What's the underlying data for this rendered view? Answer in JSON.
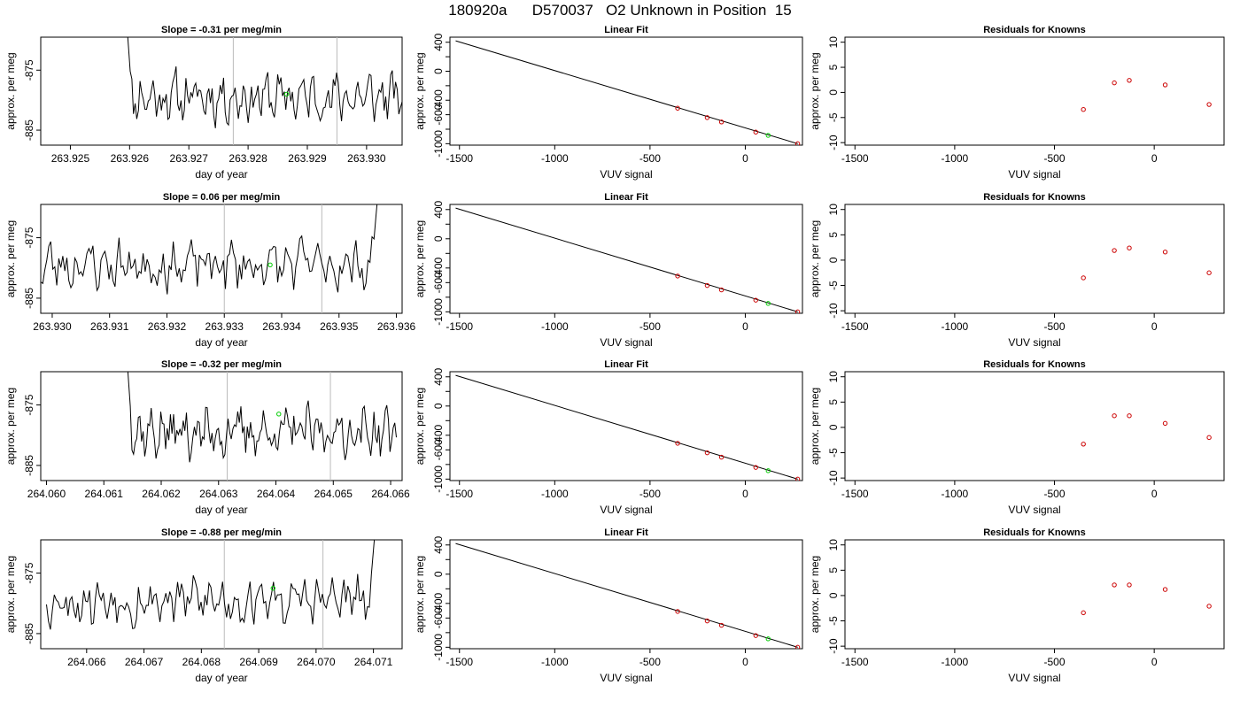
{
  "page_title": "180920a      D570037   O2 Unknown in Position  15",
  "colors": {
    "trace": "#000000",
    "marker_unknown": "#00cc00",
    "marker_known": "#cc0000",
    "vline": "#bbbbbb",
    "frame": "#000000"
  },
  "chart_data": [
    {
      "type": "line",
      "row": 1,
      "title": "Slope =  -0.31  per meg/min",
      "xlabel": "day of year",
      "ylabel": "approx. per meg",
      "xlim": [
        263.9245,
        263.9306
      ],
      "ylim": [
        -887.5,
        -869.5
      ],
      "xticks": [
        "263.925",
        "263.926",
        "263.927",
        "263.928",
        "263.929",
        "263.930"
      ],
      "xtick_values": [
        263.925,
        263.926,
        263.927,
        263.928,
        263.929,
        263.93
      ],
      "yticks": [
        "-885",
        "-875"
      ],
      "ytick_values": [
        -885,
        -875
      ],
      "vlines": [
        263.92775,
        263.9295
      ],
      "trace_x_range": [
        263.9259,
        263.9306
      ],
      "trace_seed": 11,
      "trace_start_high": true,
      "trace_end_high": false,
      "marker": {
        "x": 263.92865,
        "y": -879
      }
    },
    {
      "type": "scatter",
      "row": 1,
      "title": "Linear Fit",
      "xlabel": "VUV signal",
      "ylabel": "approx. per meg",
      "xlim": [
        -1550,
        300
      ],
      "ylim": [
        -1020,
        470
      ],
      "xticks": [
        "-1500",
        "-1000",
        "-500",
        "0"
      ],
      "xtick_values": [
        -1500,
        -1000,
        -500,
        0
      ],
      "yticks": [
        "-1000",
        "-800",
        "-600",
        "-400",
        "-200",
        "0",
        "200",
        "400"
      ],
      "ytick_values": [
        -1000,
        -800,
        -600,
        -400,
        -200,
        0,
        200,
        400
      ],
      "ytick_labels_shown": [
        "-1000",
        "-600",
        "-400",
        "0",
        "400"
      ],
      "fit_line": {
        "x": [
          -1520,
          275
        ],
        "y": [
          420,
          -1000
        ]
      },
      "knowns": {
        "x": [
          -355,
          -200,
          -125,
          55,
          275
        ],
        "y": [
          -510,
          -640,
          -700,
          -840,
          -1000
        ]
      },
      "unknown": {
        "x": 120,
        "y": -885
      }
    },
    {
      "type": "scatter",
      "row": 1,
      "title": "Residuals for Knowns",
      "xlabel": "VUV signal",
      "ylabel": "approx. per meg",
      "xlim": [
        -1550,
        350
      ],
      "ylim": [
        -10.5,
        11
      ],
      "xticks": [
        "-1500",
        "-1000",
        "-500",
        "0"
      ],
      "xtick_values": [
        -1500,
        -1000,
        -500,
        0
      ],
      "yticks": [
        "-10",
        "-5",
        "0",
        "5",
        "10"
      ],
      "ytick_values": [
        -10,
        -5,
        0,
        5,
        10
      ],
      "points": {
        "x": [
          -355,
          -200,
          -125,
          55,
          275
        ],
        "y": [
          -3.4,
          1.9,
          2.4,
          1.5,
          -2.4
        ]
      }
    },
    {
      "type": "line",
      "row": 2,
      "title": "Slope =  0.06  per meg/min",
      "xlabel": "day of year",
      "ylabel": "approx. per meg",
      "xlim": [
        263.9298,
        263.9361
      ],
      "ylim": [
        -887.5,
        -869.5
      ],
      "xticks": [
        "263.930",
        "263.931",
        "263.932",
        "263.933",
        "263.934",
        "263.935",
        "263.936"
      ],
      "xtick_values": [
        263.93,
        263.931,
        263.932,
        263.933,
        263.934,
        263.935,
        263.936
      ],
      "yticks": [
        "-885",
        "-875"
      ],
      "ytick_values": [
        -885,
        -875
      ],
      "vlines": [
        263.933,
        263.9347
      ],
      "trace_x_range": [
        263.9298,
        263.93575
      ],
      "trace_seed": 23,
      "trace_start_high": false,
      "trace_end_high": true,
      "marker": {
        "x": 263.9338,
        "y": -879.5
      }
    },
    {
      "type": "scatter",
      "row": 2,
      "title": "Linear Fit",
      "xlabel": "VUV signal",
      "ylabel": "approx. per meg",
      "xlim": [
        -1550,
        300
      ],
      "ylim": [
        -1020,
        470
      ],
      "xticks": [
        "-1500",
        "-1000",
        "-500",
        "0"
      ],
      "xtick_values": [
        -1500,
        -1000,
        -500,
        0
      ],
      "yticks": [
        "-1000",
        "-800",
        "-600",
        "-400",
        "-200",
        "0",
        "200",
        "400"
      ],
      "ytick_values": [
        -1000,
        -800,
        -600,
        -400,
        -200,
        0,
        200,
        400
      ],
      "ytick_labels_shown": [
        "-1000",
        "-600",
        "-400",
        "0",
        "400"
      ],
      "fit_line": {
        "x": [
          -1520,
          275
        ],
        "y": [
          420,
          -1000
        ]
      },
      "knowns": {
        "x": [
          -355,
          -200,
          -125,
          55,
          275
        ],
        "y": [
          -510,
          -640,
          -700,
          -840,
          -1000
        ]
      },
      "unknown": {
        "x": 120,
        "y": -885
      }
    },
    {
      "type": "scatter",
      "row": 2,
      "title": "Residuals for Knowns",
      "xlabel": "VUV signal",
      "ylabel": "approx. per meg",
      "xlim": [
        -1550,
        350
      ],
      "ylim": [
        -10.5,
        11
      ],
      "xticks": [
        "-1500",
        "-1000",
        "-500",
        "0"
      ],
      "xtick_values": [
        -1500,
        -1000,
        -500,
        0
      ],
      "yticks": [
        "-10",
        "-5",
        "0",
        "5",
        "10"
      ],
      "ytick_values": [
        -10,
        -5,
        0,
        5,
        10
      ],
      "points": {
        "x": [
          -355,
          -200,
          -125,
          55,
          275
        ],
        "y": [
          -3.5,
          1.9,
          2.4,
          1.6,
          -2.5
        ]
      }
    },
    {
      "type": "line",
      "row": 3,
      "title": "Slope =  -0.32  per meg/min",
      "xlabel": "day of year",
      "ylabel": "approx. per meg",
      "xlim": [
        264.0599,
        264.0662
      ],
      "ylim": [
        -887.5,
        -869.5
      ],
      "xticks": [
        "264.060",
        "264.061",
        "264.062",
        "264.063",
        "264.064",
        "264.065",
        "264.066"
      ],
      "xtick_values": [
        264.06,
        264.061,
        264.062,
        264.063,
        264.064,
        264.065,
        264.066
      ],
      "yticks": [
        "-885",
        "-875"
      ],
      "ytick_values": [
        -885,
        -875
      ],
      "vlines": [
        264.06315,
        264.06495
      ],
      "trace_x_range": [
        264.06135,
        264.0661
      ],
      "trace_seed": 37,
      "trace_start_high": true,
      "trace_end_high": false,
      "marker": {
        "x": 264.06405,
        "y": -876.5
      }
    },
    {
      "type": "scatter",
      "row": 3,
      "title": "Linear Fit",
      "xlabel": "VUV signal",
      "ylabel": "approx. per meg",
      "xlim": [
        -1550,
        300
      ],
      "ylim": [
        -1020,
        470
      ],
      "xticks": [
        "-1500",
        "-1000",
        "-500",
        "0"
      ],
      "xtick_values": [
        -1500,
        -1000,
        -500,
        0
      ],
      "yticks": [
        "-1000",
        "-800",
        "-600",
        "-400",
        "-200",
        "0",
        "200",
        "400"
      ],
      "ytick_values": [
        -1000,
        -800,
        -600,
        -400,
        -200,
        0,
        200,
        400
      ],
      "ytick_labels_shown": [
        "-1000",
        "-600",
        "-400",
        "0",
        "400"
      ],
      "fit_line": {
        "x": [
          -1520,
          275
        ],
        "y": [
          420,
          -1000
        ]
      },
      "knowns": {
        "x": [
          -355,
          -200,
          -125,
          55,
          275
        ],
        "y": [
          -510,
          -640,
          -700,
          -840,
          -1000
        ]
      },
      "unknown": {
        "x": 120,
        "y": -885
      }
    },
    {
      "type": "scatter",
      "row": 3,
      "title": "Residuals for Knowns",
      "xlabel": "VUV signal",
      "ylabel": "approx. per meg",
      "xlim": [
        -1550,
        350
      ],
      "ylim": [
        -10.5,
        11
      ],
      "xticks": [
        "-1500",
        "-1000",
        "-500",
        "0"
      ],
      "xtick_values": [
        -1500,
        -1000,
        -500,
        0
      ],
      "yticks": [
        "-10",
        "-5",
        "0",
        "5",
        "10"
      ],
      "ytick_values": [
        -10,
        -5,
        0,
        5,
        10
      ],
      "points": {
        "x": [
          -355,
          -200,
          -125,
          55,
          275
        ],
        "y": [
          -3.3,
          2.3,
          2.3,
          0.8,
          -2.0
        ]
      }
    },
    {
      "type": "line",
      "row": 4,
      "title": "Slope =  -0.88  per meg/min",
      "xlabel": "day of year",
      "ylabel": "approx. per meg",
      "xlim": [
        264.0652,
        264.0715
      ],
      "ylim": [
        -887.5,
        -869.5
      ],
      "xticks": [
        "264.066",
        "264.067",
        "264.068",
        "264.069",
        "264.070",
        "264.071"
      ],
      "xtick_values": [
        264.066,
        264.067,
        264.068,
        264.069,
        264.07,
        264.071
      ],
      "yticks": [
        "-885",
        "-875"
      ],
      "ytick_values": [
        -885,
        -875
      ],
      "vlines": [
        264.0684,
        264.07012
      ],
      "trace_x_range": [
        264.0653,
        264.0711
      ],
      "trace_seed": 53,
      "trace_start_high": false,
      "trace_end_high": true,
      "marker": {
        "x": 264.06925,
        "y": -877.5
      }
    },
    {
      "type": "scatter",
      "row": 4,
      "title": "Linear Fit",
      "xlabel": "VUV signal",
      "ylabel": "approx. per meg",
      "xlim": [
        -1550,
        300
      ],
      "ylim": [
        -1020,
        470
      ],
      "xticks": [
        "-1500",
        "-1000",
        "-500",
        "0"
      ],
      "xtick_values": [
        -1500,
        -1000,
        -500,
        0
      ],
      "yticks": [
        "-1000",
        "-800",
        "-600",
        "-400",
        "-200",
        "0",
        "200",
        "400"
      ],
      "ytick_values": [
        -1000,
        -800,
        -600,
        -400,
        -200,
        0,
        200,
        400
      ],
      "ytick_labels_shown": [
        "-1000",
        "-600",
        "-400",
        "0",
        "400"
      ],
      "fit_line": {
        "x": [
          -1520,
          275
        ],
        "y": [
          420,
          -1000
        ]
      },
      "knowns": {
        "x": [
          -355,
          -200,
          -125,
          55,
          275
        ],
        "y": [
          -510,
          -640,
          -700,
          -840,
          -1000
        ]
      },
      "unknown": {
        "x": 120,
        "y": -885
      }
    },
    {
      "type": "scatter",
      "row": 4,
      "title": "Residuals for Knowns",
      "xlabel": "VUV signal",
      "ylabel": "approx. per meg",
      "xlim": [
        -1550,
        350
      ],
      "ylim": [
        -10.5,
        11
      ],
      "xticks": [
        "-1500",
        "-1000",
        "-500",
        "0"
      ],
      "xtick_values": [
        -1500,
        -1000,
        -500,
        0
      ],
      "yticks": [
        "-10",
        "-5",
        "0",
        "5",
        "10"
      ],
      "ytick_values": [
        -10,
        -5,
        0,
        5,
        10
      ],
      "points": {
        "x": [
          -355,
          -200,
          -125,
          55,
          275
        ],
        "y": [
          -3.4,
          2.1,
          2.1,
          1.2,
          -2.1
        ]
      }
    }
  ]
}
